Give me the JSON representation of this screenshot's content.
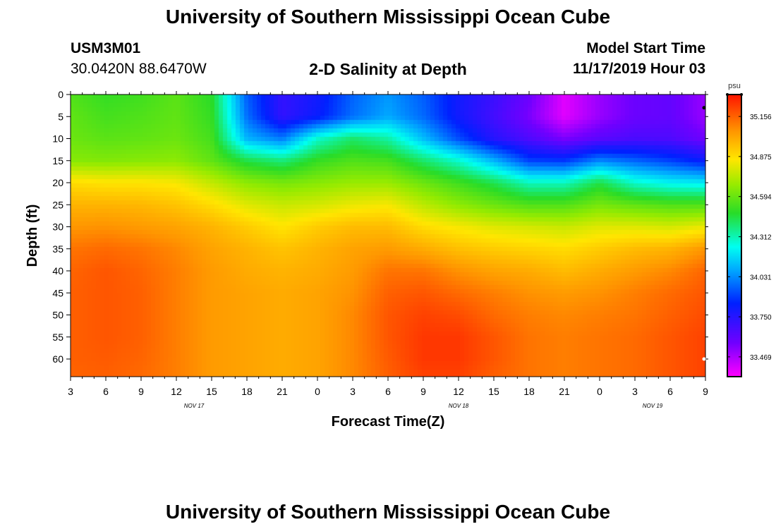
{
  "header": {
    "title": "University of Southern Mississippi Ocean Cube",
    "station_id": "USM3M01",
    "coordinates": "30.0420N 88.6470W",
    "plot_title": "2-D Salinity at Depth",
    "model_start_label": "Model Start Time",
    "model_start_value": "11/17/2019 Hour 03"
  },
  "footer": {
    "title": "University of Southern Mississippi Ocean Cube"
  },
  "chart_data": {
    "type": "heatmap",
    "title": "2-D Salinity at Depth",
    "xlabel": "Forecast Time(Z)",
    "ylabel": "Depth (ft)",
    "x_ticks": [
      "3",
      "6",
      "9",
      "12",
      "15",
      "18",
      "21",
      "0",
      "3",
      "6",
      "9",
      "12",
      "15",
      "18",
      "21",
      "0",
      "3",
      "6",
      "9"
    ],
    "x_hours_from_start": [
      0,
      3,
      6,
      9,
      12,
      15,
      18,
      21,
      24,
      27,
      30,
      33,
      36,
      39,
      42,
      45,
      48,
      51,
      54
    ],
    "day_labels": [
      {
        "label": "NOV 17",
        "hour": 10.5
      },
      {
        "label": "NOV 18",
        "hour": 33
      },
      {
        "label": "NOV 19",
        "hour": 49.5
      }
    ],
    "y_ticks": [
      0,
      5,
      10,
      15,
      20,
      25,
      30,
      35,
      40,
      45,
      50,
      55,
      60
    ],
    "ylim": [
      0,
      64
    ],
    "xlim_hours": [
      0,
      54
    ],
    "colorbar": {
      "unit": "psu",
      "ticks": [
        "35.156",
        "34.875",
        "34.594",
        "34.312",
        "34.031",
        "33.750",
        "33.469"
      ],
      "tick_values": [
        35.156,
        34.875,
        34.594,
        34.312,
        34.031,
        33.75,
        33.469
      ],
      "range": [
        33.33,
        35.31
      ]
    },
    "grid_hours": [
      0,
      3,
      6,
      9,
      12,
      15,
      18,
      21,
      24,
      27,
      30,
      33,
      36,
      39,
      42,
      45,
      48,
      51,
      54
    ],
    "grid_depths": [
      0,
      5,
      10,
      15,
      20,
      25,
      30,
      35,
      40,
      45,
      50,
      55,
      60,
      64
    ],
    "salinity_psu": [
      [
        34.55,
        34.5,
        34.52,
        34.57,
        34.48,
        33.95,
        33.72,
        33.8,
        33.96,
        34.05,
        33.95,
        33.8,
        33.7,
        33.58,
        33.38,
        33.5,
        33.58,
        33.6,
        33.5
      ],
      [
        34.58,
        34.53,
        34.55,
        34.58,
        34.5,
        33.98,
        33.72,
        33.82,
        33.98,
        34.08,
        33.97,
        33.8,
        33.68,
        33.55,
        33.38,
        33.5,
        33.58,
        33.6,
        33.5
      ],
      [
        34.6,
        34.57,
        34.58,
        34.6,
        34.53,
        34.1,
        34.0,
        34.28,
        34.4,
        34.33,
        34.12,
        33.92,
        33.75,
        33.65,
        33.55,
        33.62,
        33.66,
        33.65,
        33.57
      ],
      [
        34.65,
        34.64,
        34.65,
        34.66,
        34.58,
        34.44,
        34.38,
        34.5,
        34.55,
        34.53,
        34.4,
        34.28,
        34.1,
        33.9,
        33.88,
        34.02,
        33.96,
        33.9,
        33.82
      ],
      [
        34.88,
        34.86,
        34.86,
        34.84,
        34.75,
        34.66,
        34.62,
        34.65,
        34.68,
        34.68,
        34.6,
        34.52,
        34.43,
        34.3,
        34.3,
        34.44,
        34.28,
        34.22,
        34.2
      ],
      [
        34.98,
        34.98,
        34.97,
        34.94,
        34.88,
        34.8,
        34.76,
        34.78,
        34.82,
        34.84,
        34.74,
        34.66,
        34.6,
        34.55,
        34.55,
        34.62,
        34.58,
        34.55,
        34.55
      ],
      [
        35.05,
        35.06,
        35.04,
        35.02,
        34.98,
        34.92,
        34.86,
        34.92,
        34.96,
        34.96,
        34.88,
        34.84,
        34.8,
        34.78,
        34.76,
        34.8,
        34.8,
        34.78,
        34.82
      ],
      [
        35.12,
        35.14,
        35.12,
        35.08,
        35.02,
        34.98,
        34.94,
        34.98,
        35.02,
        35.04,
        35.0,
        34.95,
        34.92,
        34.9,
        34.88,
        34.92,
        34.96,
        34.98,
        35.05
      ],
      [
        35.15,
        35.18,
        35.15,
        35.1,
        35.04,
        35.0,
        34.98,
        35.0,
        35.04,
        35.12,
        35.12,
        35.06,
        35.02,
        35.0,
        34.96,
        35.0,
        35.04,
        35.08,
        35.15
      ],
      [
        35.16,
        35.18,
        35.16,
        35.1,
        35.04,
        35.02,
        35.0,
        35.02,
        35.06,
        35.16,
        35.18,
        35.14,
        35.1,
        35.06,
        35.04,
        35.06,
        35.1,
        35.14,
        35.18
      ],
      [
        35.16,
        35.18,
        35.16,
        35.1,
        35.04,
        35.02,
        35.0,
        35.02,
        35.08,
        35.18,
        35.22,
        35.2,
        35.14,
        35.1,
        35.08,
        35.1,
        35.12,
        35.16,
        35.2
      ],
      [
        35.16,
        35.18,
        35.16,
        35.1,
        35.04,
        35.02,
        35.0,
        35.02,
        35.08,
        35.18,
        35.24,
        35.24,
        35.18,
        35.12,
        35.1,
        35.12,
        35.14,
        35.18,
        35.22
      ],
      [
        35.16,
        35.17,
        35.15,
        35.1,
        35.04,
        35.02,
        35.0,
        35.02,
        35.08,
        35.17,
        35.24,
        35.24,
        35.18,
        35.12,
        35.1,
        35.12,
        35.14,
        35.18,
        35.22
      ],
      [
        35.15,
        35.16,
        35.14,
        35.1,
        35.04,
        35.02,
        35.0,
        35.02,
        35.08,
        35.16,
        35.22,
        35.22,
        35.16,
        35.12,
        35.1,
        35.12,
        35.14,
        35.18,
        35.22
      ]
    ]
  }
}
